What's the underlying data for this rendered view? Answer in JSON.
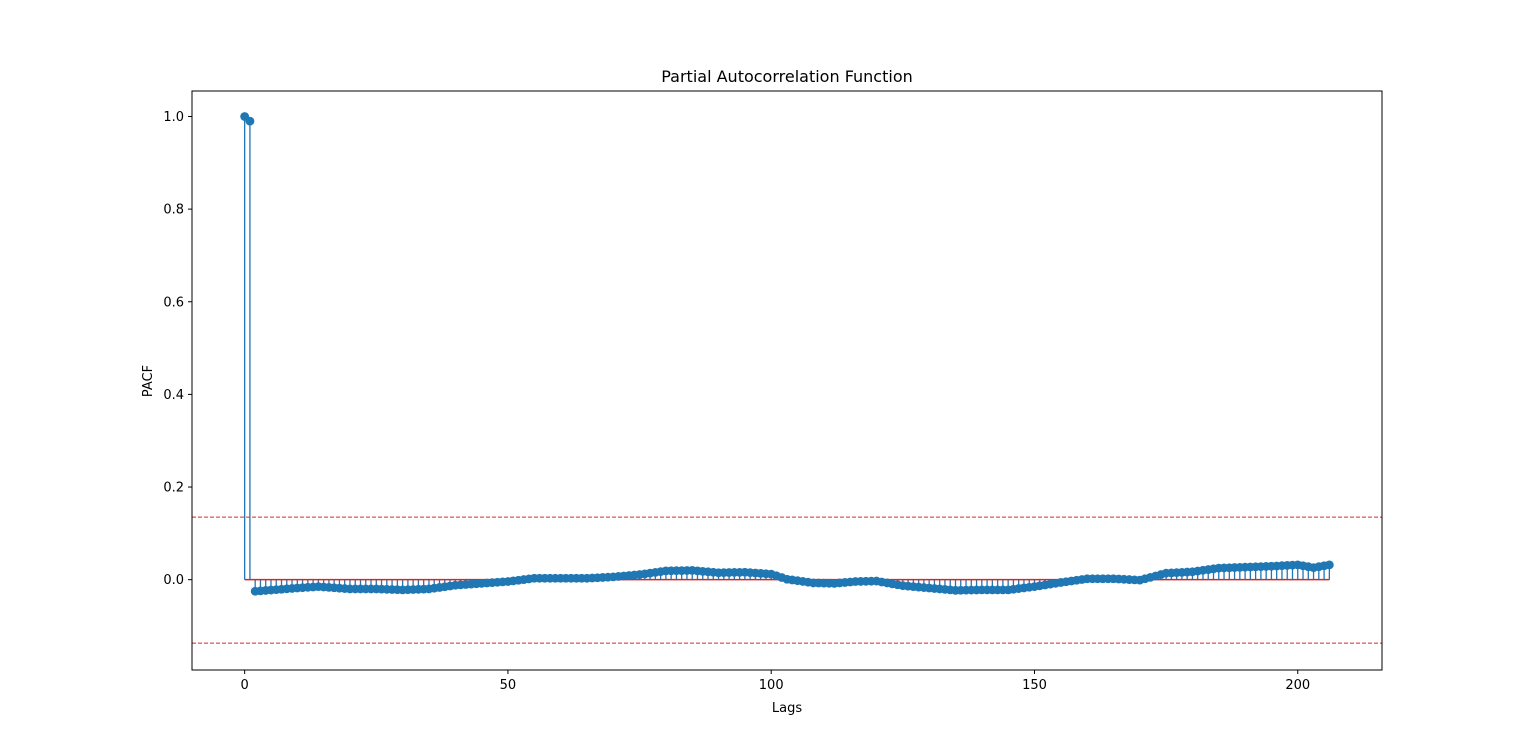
{
  "chart_data": {
    "type": "stem",
    "title": "Partial Autocorrelation Function",
    "xlabel": "Lags",
    "ylabel": "PACF",
    "xlim": [
      -10,
      216
    ],
    "ylim": [
      -0.195,
      1.055
    ],
    "xticks": [
      0,
      50,
      100,
      150,
      200
    ],
    "yticks": [
      0.0,
      0.2,
      0.4,
      0.6,
      0.8,
      1.0
    ],
    "xtick_labels": [
      "0",
      "50",
      "100",
      "150",
      "200"
    ],
    "ytick_labels": [
      "0.0",
      "0.2",
      "0.4",
      "0.6",
      "0.8",
      "1.0"
    ],
    "grid": false,
    "confidence_bounds": [
      0.135,
      -0.137
    ],
    "anchors": [
      [
        0,
        1.0
      ],
      [
        1,
        0.99
      ],
      [
        2,
        -0.025
      ],
      [
        10,
        -0.018
      ],
      [
        14,
        -0.015
      ],
      [
        20,
        -0.02
      ],
      [
        25,
        -0.02
      ],
      [
        30,
        -0.022
      ],
      [
        35,
        -0.02
      ],
      [
        40,
        -0.012
      ],
      [
        45,
        -0.008
      ],
      [
        50,
        -0.004
      ],
      [
        55,
        0.003
      ],
      [
        60,
        0.003
      ],
      [
        65,
        0.003
      ],
      [
        70,
        0.006
      ],
      [
        75,
        0.011
      ],
      [
        80,
        0.019
      ],
      [
        85,
        0.02
      ],
      [
        90,
        0.015
      ],
      [
        95,
        0.016
      ],
      [
        100,
        0.012
      ],
      [
        103,
        0.001
      ],
      [
        108,
        -0.007
      ],
      [
        112,
        -0.008
      ],
      [
        116,
        -0.004
      ],
      [
        120,
        -0.003
      ],
      [
        125,
        -0.013
      ],
      [
        130,
        -0.018
      ],
      [
        135,
        -0.023
      ],
      [
        140,
        -0.022
      ],
      [
        145,
        -0.022
      ],
      [
        150,
        -0.015
      ],
      [
        155,
        -0.006
      ],
      [
        160,
        0.002
      ],
      [
        165,
        0.002
      ],
      [
        170,
        -0.001
      ],
      [
        175,
        0.014
      ],
      [
        180,
        0.017
      ],
      [
        185,
        0.025
      ],
      [
        190,
        0.027
      ],
      [
        195,
        0.029
      ],
      [
        200,
        0.032
      ],
      [
        203,
        0.026
      ],
      [
        206,
        0.032
      ]
    ],
    "colors": {
      "stem": "#1f77b4",
      "baseline": "#d62728",
      "bounds": "#d62728"
    }
  }
}
